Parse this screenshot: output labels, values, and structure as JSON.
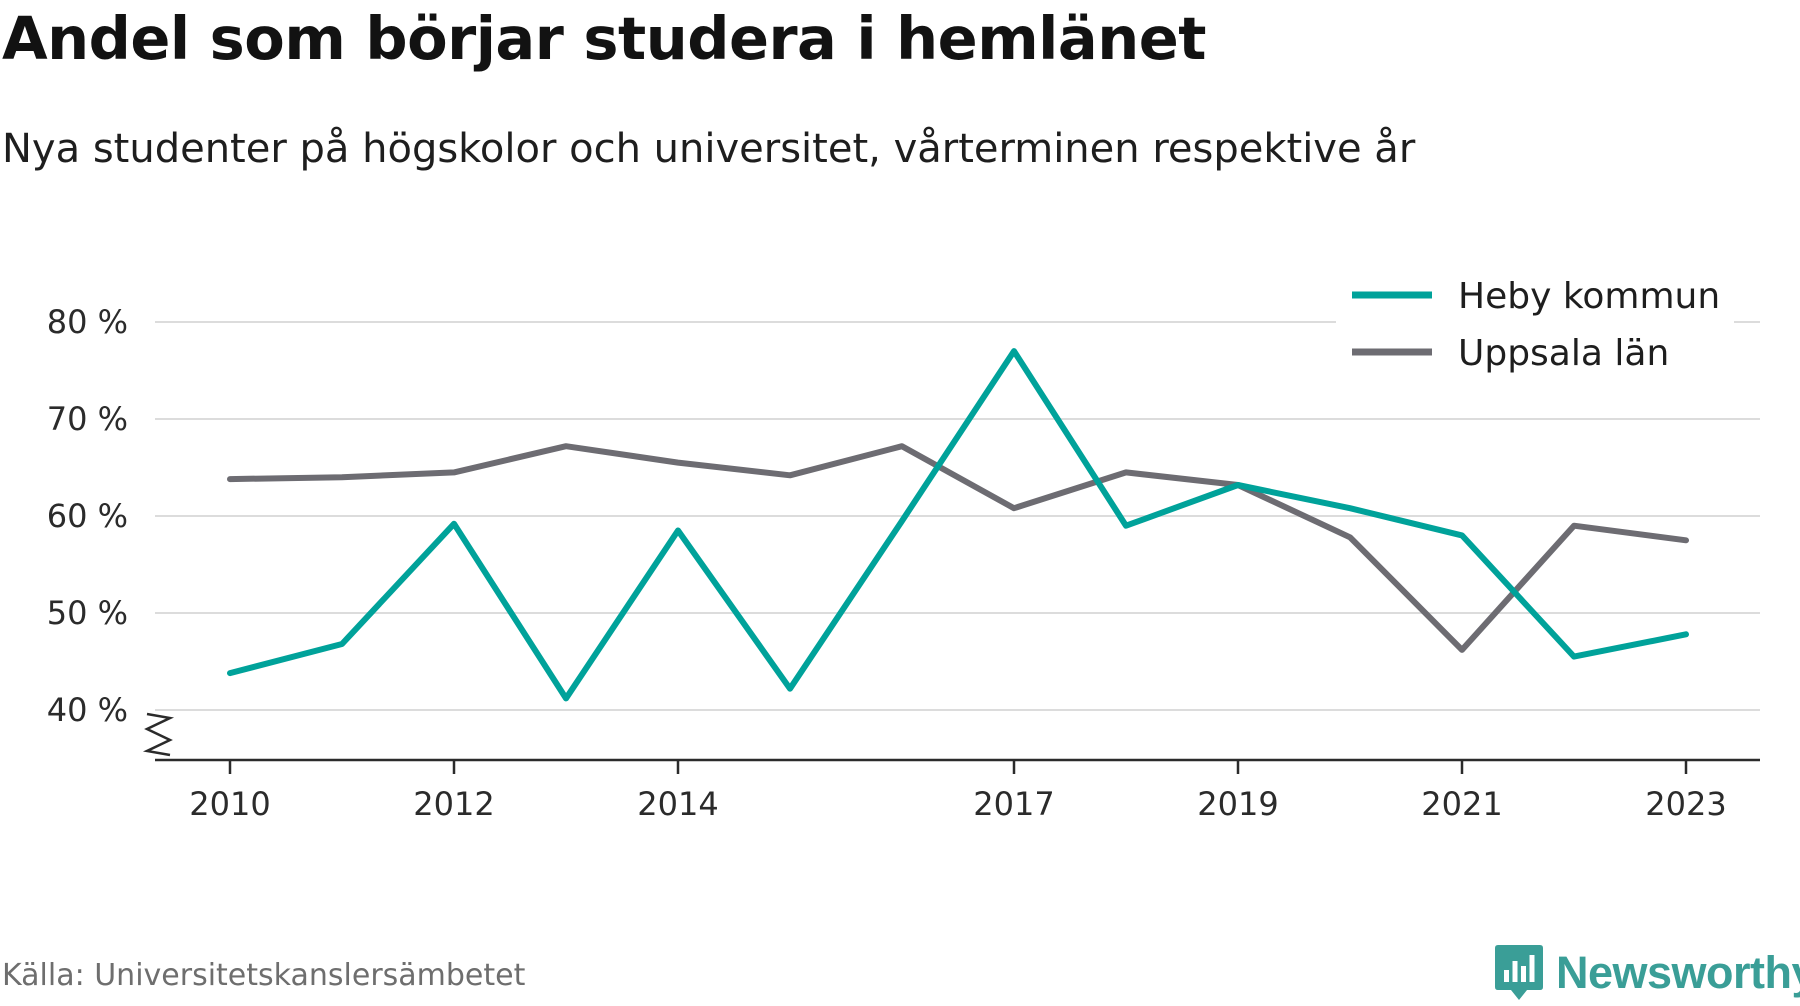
{
  "header": {
    "title": "Andel som börjar studera i hemlänet",
    "subtitle": "Nya studenter på högskolor och universitet, vårterminen respektive år"
  },
  "footer": {
    "source": "Källa: Universitetskanslersämbetet",
    "brand": "Newsworthy"
  },
  "colors": {
    "heby": "#00a29a",
    "uppsala": "#6d6c72",
    "grid": "#dcdcdc",
    "axis": "#2b2b2b",
    "brand": "#3a9e97"
  },
  "icons": {
    "axis_break": "zigzag-break-icon",
    "brand_logo": "bar-chart-badge-icon"
  },
  "chart_data": {
    "type": "line",
    "title": "Andel som börjar studera i hemlänet",
    "subtitle": "Nya studenter på högskolor och universitet, vårterminen respektive år",
    "xlabel": "",
    "ylabel": "",
    "x": [
      2010,
      2011,
      2012,
      2013,
      2014,
      2015,
      2016,
      2017,
      2018,
      2019,
      2020,
      2021,
      2022,
      2023
    ],
    "x_ticks": [
      2010,
      2012,
      2014,
      2017,
      2019,
      2021,
      2023
    ],
    "x_tick_labels": [
      "2010",
      "2012",
      "2014",
      "2017",
      "2019",
      "2021",
      "2023"
    ],
    "y_ticks": [
      40,
      50,
      60,
      70,
      80
    ],
    "y_tick_labels": [
      "40 %",
      "50 %",
      "60 %",
      "70 %",
      "80 %"
    ],
    "ylim": [
      35,
      82
    ],
    "y_axis_break": true,
    "grid": true,
    "legend_position": "top-right",
    "series": [
      {
        "name": "Heby kommun",
        "color": "#00a29a",
        "values": [
          43.8,
          46.8,
          59.2,
          41.2,
          58.5,
          42.2,
          59.5,
          77.0,
          59.0,
          63.2,
          60.8,
          58.0,
          45.5,
          47.8
        ]
      },
      {
        "name": "Uppsala län",
        "color": "#6d6c72",
        "values": [
          63.8,
          64.0,
          64.5,
          67.2,
          65.5,
          64.2,
          67.2,
          60.8,
          64.5,
          63.2,
          57.8,
          46.2,
          59.0,
          57.5
        ]
      }
    ]
  }
}
